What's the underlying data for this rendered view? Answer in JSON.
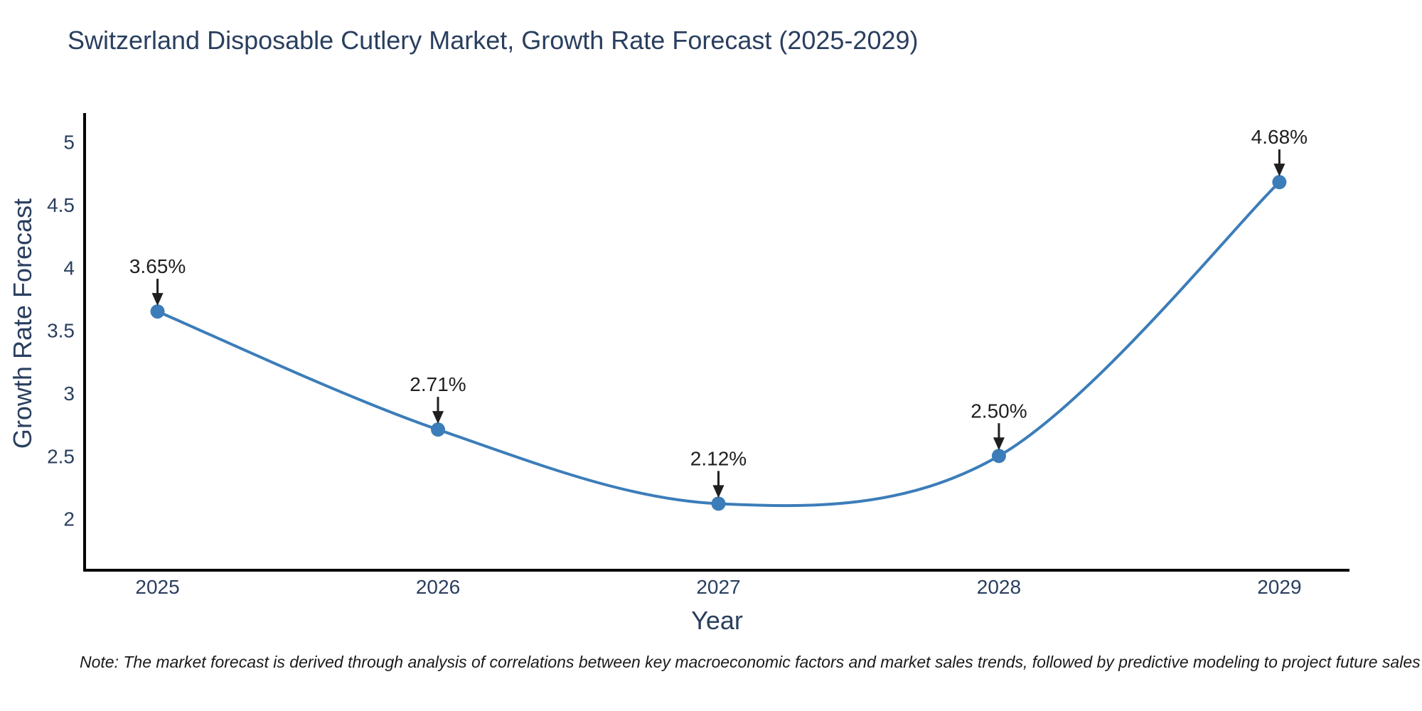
{
  "chart_data": {
    "type": "line",
    "title": "Switzerland Disposable Cutlery Market, Growth Rate Forecast (2025-2029)",
    "xlabel": "Year",
    "ylabel": "Growth Rate Forecast",
    "x": [
      2025,
      2026,
      2027,
      2028,
      2029
    ],
    "values": [
      3.65,
      2.71,
      2.12,
      2.5,
      4.68
    ],
    "point_labels": [
      "3.65%",
      "2.71%",
      "2.12%",
      "2.50%",
      "4.68%"
    ],
    "xtick_labels": [
      "2025",
      "2026",
      "2027",
      "2028",
      "2029"
    ],
    "yticks": [
      2,
      2.5,
      3,
      3.5,
      4,
      4.5,
      5
    ],
    "ytick_labels": [
      "2",
      "2.5",
      "3",
      "3.5",
      "4",
      "4.5",
      "5"
    ],
    "xlim": [
      2024.74,
      2029.25
    ],
    "ylim": [
      1.59,
      5.23
    ],
    "grid": false,
    "line_shape": "spline",
    "legend": "none",
    "colors": {
      "line": "#3c7db9",
      "marker": "#3c7db9",
      "axis": "#000000",
      "tick_text": "#2a3f5f",
      "annotation": "#1f1f1f"
    },
    "note": "Note: The market forecast is derived through analysis of correlations between key macroeconomic factors and market sales trends, followed by predictive modeling to project future sales"
  }
}
